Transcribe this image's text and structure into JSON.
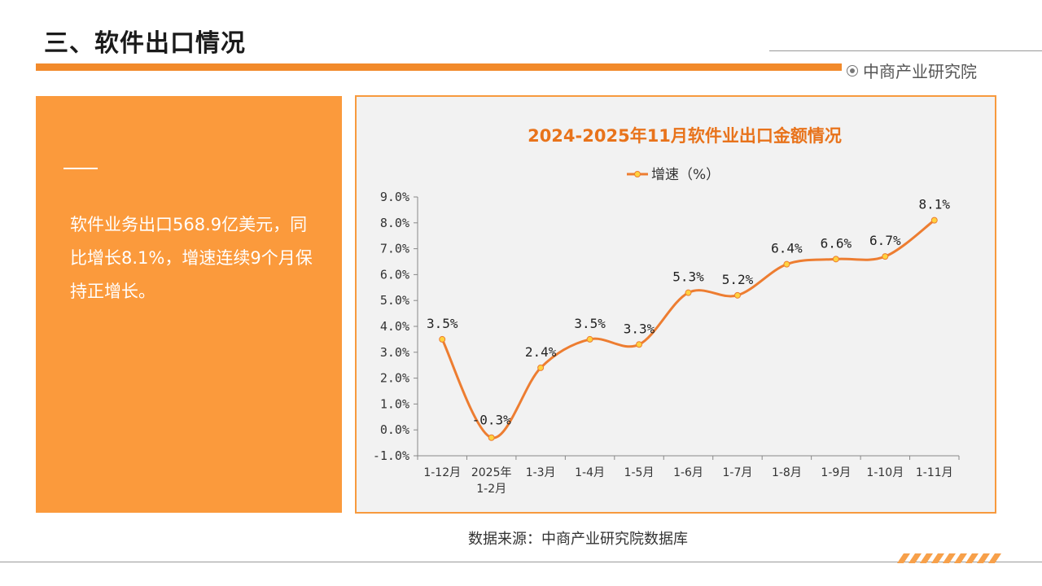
{
  "header": {
    "title": "三、软件出口情况",
    "brand": "中商产业研究院",
    "brand_icon": "target-icon"
  },
  "summary": {
    "text": "软件业务出口568.9亿美元，同比增长8.1%，增速连续9个月保持正增长。"
  },
  "source": {
    "text": "数据来源：中商产业研究院数据库"
  },
  "colors": {
    "accent": "#f28a2b",
    "panel": "#fb9a3c",
    "line": "#ed7d31",
    "marker_fill": "#ffd23f",
    "chart_title": "#e8731b"
  },
  "chart_data": {
    "type": "line",
    "title": "2024-2025年11月软件业出口金额情况",
    "categories": [
      "1-12月",
      "2025年\n1-2月",
      "1-3月",
      "1-4月",
      "1-5月",
      "1-6月",
      "1-7月",
      "1-8月",
      "1-9月",
      "1-10月",
      "1-11月"
    ],
    "series": [
      {
        "name": "增速（%）",
        "values": [
          3.5,
          -0.3,
          2.4,
          3.5,
          3.3,
          5.3,
          5.2,
          6.4,
          6.6,
          6.7,
          8.1
        ]
      }
    ],
    "data_labels": [
      "3.5%",
      "-0.3%",
      "2.4%",
      "3.5%",
      "3.3%",
      "5.3%",
      "5.2%",
      "6.4%",
      "6.6%",
      "6.7%",
      "8.1%"
    ],
    "ylim": [
      -1.0,
      9.0
    ],
    "yticks": [
      -1.0,
      0.0,
      1.0,
      2.0,
      3.0,
      4.0,
      5.0,
      6.0,
      7.0,
      8.0,
      9.0
    ],
    "ytick_labels": [
      "-1.0%",
      "0.0%",
      "1.0%",
      "2.0%",
      "3.0%",
      "4.0%",
      "5.0%",
      "6.0%",
      "7.0%",
      "8.0%",
      "9.0%"
    ],
    "legend": "top",
    "grid": false,
    "smooth": true
  }
}
